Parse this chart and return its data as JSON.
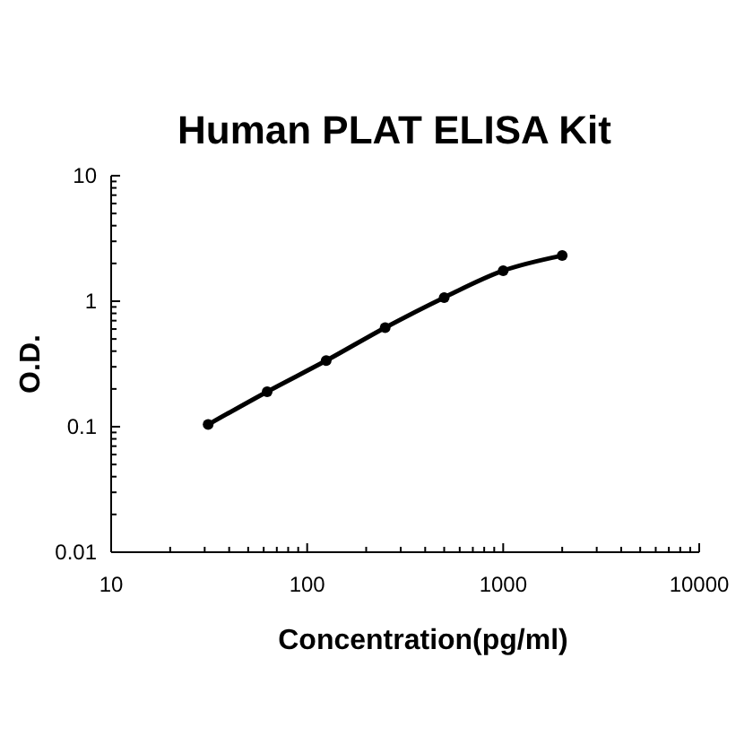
{
  "chart_data": {
    "type": "line",
    "title": "Human PLAT ELISA Kit",
    "xlabel": "Concentration(pg/ml)",
    "ylabel": "O.D.",
    "log": "xy",
    "marker": "circle",
    "line_style": "solid",
    "x": [
      31.25,
      62.5,
      125,
      250,
      500,
      1000,
      2000
    ],
    "series": [
      {
        "color": "#000000",
        "values": [
          0.104,
          0.19,
          0.336,
          0.616,
          1.07,
          1.75,
          2.31
        ]
      }
    ],
    "xlim": [
      10,
      10000
    ],
    "ylim": [
      0.01,
      10
    ],
    "xticks": [
      10,
      {
        "value": 20,
        "label": null
      },
      {
        "value": 30,
        "label": null
      },
      {
        "value": 40,
        "label": null
      },
      {
        "value": 50,
        "label": null
      },
      {
        "value": 60,
        "label": null
      },
      {
        "value": 70,
        "label": null
      },
      {
        "value": 80,
        "label": null
      },
      {
        "value": 90,
        "label": null
      },
      100,
      {
        "value": 200,
        "label": null
      },
      {
        "value": 300,
        "label": null
      },
      {
        "value": 400,
        "label": null
      },
      {
        "value": 500,
        "label": null
      },
      {
        "value": 600,
        "label": null
      },
      {
        "value": 700,
        "label": null
      },
      {
        "value": 800,
        "label": null
      },
      {
        "value": 900,
        "label": null
      },
      1000,
      {
        "value": 2000,
        "label": null
      },
      {
        "value": 3000,
        "label": null
      },
      {
        "value": 4000,
        "label": null
      },
      {
        "value": 5000,
        "label": null
      },
      {
        "value": 6000,
        "label": null
      },
      {
        "value": 7000,
        "label": null
      },
      {
        "value": 8000,
        "label": null
      },
      {
        "value": 9000,
        "label": null
      },
      10000
    ],
    "yticks": [
      0.01,
      {
        "value": 0.02,
        "label": null
      },
      {
        "value": 0.03,
        "label": null
      },
      {
        "value": 0.04,
        "label": null
      },
      {
        "value": 0.05,
        "label": null
      },
      {
        "value": 0.06,
        "label": null
      },
      {
        "value": 0.07,
        "label": null
      },
      {
        "value": 0.08,
        "label": null
      },
      {
        "value": 0.09,
        "label": null
      },
      0.1,
      {
        "value": 0.2,
        "label": null
      },
      {
        "value": 0.3,
        "label": null
      },
      {
        "value": 0.4,
        "label": null
      },
      {
        "value": 0.5,
        "label": null
      },
      {
        "value": 0.6,
        "label": null
      },
      {
        "value": 0.7,
        "label": null
      },
      {
        "value": 0.8,
        "label": null
      },
      {
        "value": 0.9,
        "label": null
      },
      1,
      {
        "value": 2,
        "label": null
      },
      {
        "value": 3,
        "label": null
      },
      {
        "value": 4,
        "label": null
      },
      {
        "value": 5,
        "label": null
      },
      {
        "value": 6,
        "label": null
      },
      {
        "value": 7,
        "label": null
      },
      {
        "value": 8,
        "label": null
      },
      {
        "value": 9,
        "label": null
      },
      10
    ]
  }
}
